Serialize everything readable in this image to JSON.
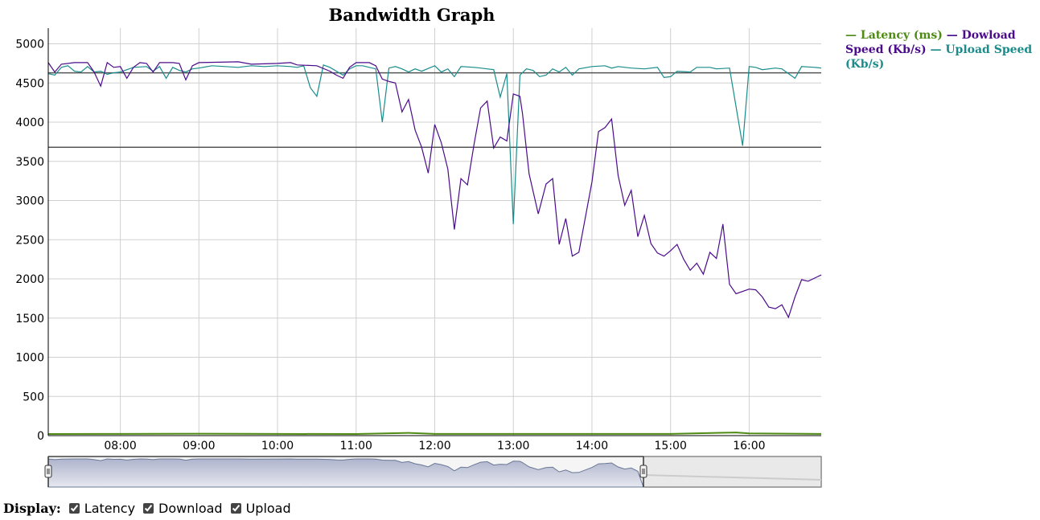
{
  "chart_data": {
    "type": "line",
    "title": "Bandwidth Graph",
    "xlabel": "",
    "ylabel": "",
    "xlim": [
      "07:05",
      "16:55"
    ],
    "ylim": [
      0,
      5200
    ],
    "x_ticks": [
      "08:00",
      "09:00",
      "10:00",
      "11:00",
      "12:00",
      "13:00",
      "14:00",
      "15:00",
      "16:00"
    ],
    "y_ticks": [
      0,
      500,
      1000,
      1500,
      2000,
      2500,
      3000,
      3500,
      4000,
      4500,
      5000
    ],
    "grid": true,
    "legend_position": "right",
    "reference_lines": [
      4630,
      3680
    ],
    "series": [
      {
        "name": "Latency (ms)",
        "color": "#4e8a14",
        "points": [
          [
            "07:05",
            20
          ],
          [
            "08:00",
            22
          ],
          [
            "09:00",
            25
          ],
          [
            "10:00",
            22
          ],
          [
            "11:00",
            20
          ],
          [
            "11:40",
            35
          ],
          [
            "11:50",
            28
          ],
          [
            "12:00",
            22
          ],
          [
            "13:00",
            22
          ],
          [
            "14:00",
            22
          ],
          [
            "15:00",
            22
          ],
          [
            "15:50",
            40
          ],
          [
            "16:00",
            28
          ],
          [
            "16:55",
            22
          ]
        ]
      },
      {
        "name": "Dowload Speed (Kb/s)",
        "color": "#4b0b8a",
        "points": [
          [
            "07:05",
            4760
          ],
          [
            "07:10",
            4640
          ],
          [
            "07:15",
            4740
          ],
          [
            "07:25",
            4760
          ],
          [
            "07:35",
            4760
          ],
          [
            "07:40",
            4640
          ],
          [
            "07:45",
            4460
          ],
          [
            "07:50",
            4760
          ],
          [
            "07:55",
            4700
          ],
          [
            "08:00",
            4710
          ],
          [
            "08:05",
            4560
          ],
          [
            "08:10",
            4700
          ],
          [
            "08:15",
            4760
          ],
          [
            "08:20",
            4750
          ],
          [
            "08:25",
            4640
          ],
          [
            "08:30",
            4760
          ],
          [
            "08:40",
            4760
          ],
          [
            "08:45",
            4750
          ],
          [
            "08:50",
            4540
          ],
          [
            "08:55",
            4720
          ],
          [
            "09:00",
            4760
          ],
          [
            "09:30",
            4770
          ],
          [
            "09:40",
            4740
          ],
          [
            "10:00",
            4750
          ],
          [
            "10:10",
            4760
          ],
          [
            "10:15",
            4730
          ],
          [
            "10:30",
            4720
          ],
          [
            "10:40",
            4650
          ],
          [
            "10:45",
            4600
          ],
          [
            "10:50",
            4560
          ],
          [
            "10:55",
            4700
          ],
          [
            "11:00",
            4760
          ],
          [
            "11:10",
            4760
          ],
          [
            "11:15",
            4720
          ],
          [
            "11:20",
            4550
          ],
          [
            "11:25",
            4520
          ],
          [
            "11:30",
            4500
          ],
          [
            "11:35",
            4130
          ],
          [
            "11:40",
            4290
          ],
          [
            "11:45",
            3900
          ],
          [
            "11:50",
            3680
          ],
          [
            "11:55",
            3350
          ],
          [
            "12:00",
            3970
          ],
          [
            "12:05",
            3740
          ],
          [
            "12:10",
            3400
          ],
          [
            "12:15",
            2630
          ],
          [
            "12:20",
            3280
          ],
          [
            "12:25",
            3200
          ],
          [
            "12:30",
            3720
          ],
          [
            "12:35",
            4180
          ],
          [
            "12:40",
            4270
          ],
          [
            "12:45",
            3670
          ],
          [
            "12:50",
            3810
          ],
          [
            "12:55",
            3760
          ],
          [
            "13:00",
            4360
          ],
          [
            "13:05",
            4330
          ],
          [
            "13:07",
            4110
          ],
          [
            "13:12",
            3340
          ],
          [
            "13:19",
            2830
          ],
          [
            "13:25",
            3210
          ],
          [
            "13:30",
            3280
          ],
          [
            "13:35",
            2440
          ],
          [
            "13:40",
            2770
          ],
          [
            "13:45",
            2290
          ],
          [
            "13:50",
            2340
          ],
          [
            "14:00",
            3240
          ],
          [
            "14:05",
            3880
          ],
          [
            "14:10",
            3930
          ],
          [
            "14:15",
            4040
          ],
          [
            "14:20",
            3320
          ],
          [
            "14:25",
            2940
          ],
          [
            "14:30",
            3130
          ],
          [
            "14:35",
            2540
          ],
          [
            "14:40",
            2810
          ],
          [
            "14:45",
            2450
          ],
          [
            "14:50",
            2330
          ],
          [
            "14:55",
            2290
          ],
          [
            "15:00",
            2360
          ],
          [
            "15:05",
            2440
          ],
          [
            "15:10",
            2250
          ],
          [
            "15:15",
            2110
          ],
          [
            "15:20",
            2200
          ],
          [
            "15:25",
            2060
          ],
          [
            "15:30",
            2340
          ],
          [
            "15:35",
            2260
          ],
          [
            "15:40",
            2700
          ],
          [
            "15:45",
            1930
          ],
          [
            "15:50",
            1810
          ],
          [
            "16:00",
            1870
          ],
          [
            "16:05",
            1860
          ],
          [
            "16:10",
            1770
          ],
          [
            "16:15",
            1640
          ],
          [
            "16:20",
            1620
          ],
          [
            "16:25",
            1670
          ],
          [
            "16:30",
            1510
          ],
          [
            "16:35",
            1770
          ],
          [
            "16:40",
            1990
          ],
          [
            "16:45",
            1970
          ],
          [
            "16:55",
            2050
          ]
        ]
      },
      {
        "name": "Upload Speed (Kb/s)",
        "color": "#1a8c8c",
        "points": [
          [
            "07:05",
            4620
          ],
          [
            "07:10",
            4600
          ],
          [
            "07:15",
            4700
          ],
          [
            "07:20",
            4720
          ],
          [
            "07:25",
            4650
          ],
          [
            "07:30",
            4640
          ],
          [
            "07:35",
            4710
          ],
          [
            "07:40",
            4640
          ],
          [
            "07:45",
            4650
          ],
          [
            "07:50",
            4610
          ],
          [
            "07:55",
            4630
          ],
          [
            "08:00",
            4640
          ],
          [
            "08:10",
            4700
          ],
          [
            "08:20",
            4710
          ],
          [
            "08:25",
            4650
          ],
          [
            "08:30",
            4710
          ],
          [
            "08:35",
            4560
          ],
          [
            "08:40",
            4700
          ],
          [
            "08:45",
            4660
          ],
          [
            "08:50",
            4640
          ],
          [
            "08:55",
            4680
          ],
          [
            "09:00",
            4690
          ],
          [
            "09:10",
            4720
          ],
          [
            "09:20",
            4710
          ],
          [
            "09:30",
            4700
          ],
          [
            "09:40",
            4720
          ],
          [
            "09:50",
            4710
          ],
          [
            "10:00",
            4720
          ],
          [
            "10:10",
            4710
          ],
          [
            "10:15",
            4700
          ],
          [
            "10:20",
            4720
          ],
          [
            "10:25",
            4440
          ],
          [
            "10:30",
            4330
          ],
          [
            "10:35",
            4730
          ],
          [
            "10:40",
            4700
          ],
          [
            "10:50",
            4600
          ],
          [
            "10:55",
            4680
          ],
          [
            "11:00",
            4720
          ],
          [
            "11:05",
            4720
          ],
          [
            "11:10",
            4700
          ],
          [
            "11:15",
            4680
          ],
          [
            "11:20",
            4000
          ],
          [
            "11:25",
            4690
          ],
          [
            "11:30",
            4710
          ],
          [
            "11:35",
            4680
          ],
          [
            "11:40",
            4640
          ],
          [
            "11:45",
            4680
          ],
          [
            "11:50",
            4650
          ],
          [
            "12:00",
            4720
          ],
          [
            "12:05",
            4640
          ],
          [
            "12:10",
            4680
          ],
          [
            "12:15",
            4580
          ],
          [
            "12:20",
            4710
          ],
          [
            "12:30",
            4700
          ],
          [
            "12:35",
            4690
          ],
          [
            "12:45",
            4670
          ],
          [
            "12:50",
            4320
          ],
          [
            "12:55",
            4620
          ],
          [
            "13:00",
            2700
          ],
          [
            "13:05",
            4600
          ],
          [
            "13:10",
            4680
          ],
          [
            "13:15",
            4660
          ],
          [
            "13:20",
            4580
          ],
          [
            "13:25",
            4600
          ],
          [
            "13:30",
            4680
          ],
          [
            "13:35",
            4640
          ],
          [
            "13:40",
            4700
          ],
          [
            "13:45",
            4600
          ],
          [
            "13:50",
            4680
          ],
          [
            "14:00",
            4710
          ],
          [
            "14:10",
            4720
          ],
          [
            "14:15",
            4690
          ],
          [
            "14:20",
            4710
          ],
          [
            "14:30",
            4690
          ],
          [
            "14:40",
            4680
          ],
          [
            "14:50",
            4700
          ],
          [
            "14:55",
            4570
          ],
          [
            "15:00",
            4580
          ],
          [
            "15:05",
            4650
          ],
          [
            "15:15",
            4640
          ],
          [
            "15:20",
            4700
          ],
          [
            "15:30",
            4700
          ],
          [
            "15:35",
            4680
          ],
          [
            "15:45",
            4690
          ],
          [
            "15:55",
            3700
          ],
          [
            "16:00",
            4710
          ],
          [
            "16:05",
            4700
          ],
          [
            "16:10",
            4670
          ],
          [
            "16:20",
            4690
          ],
          [
            "16:25",
            4680
          ],
          [
            "16:30",
            4620
          ],
          [
            "16:35",
            4560
          ],
          [
            "16:40",
            4710
          ],
          [
            "16:50",
            4700
          ],
          [
            "16:55",
            4690
          ]
        ]
      }
    ]
  },
  "legend": {
    "latency": "Latency (ms)",
    "download": "Dowload Speed (Kb/s)",
    "upload": "Upload Speed (Kb/s)"
  },
  "display": {
    "label": "Display:",
    "options": [
      {
        "label": "Latency",
        "checked": true
      },
      {
        "label": "Download",
        "checked": true
      },
      {
        "label": "Upload",
        "checked": true
      }
    ]
  }
}
